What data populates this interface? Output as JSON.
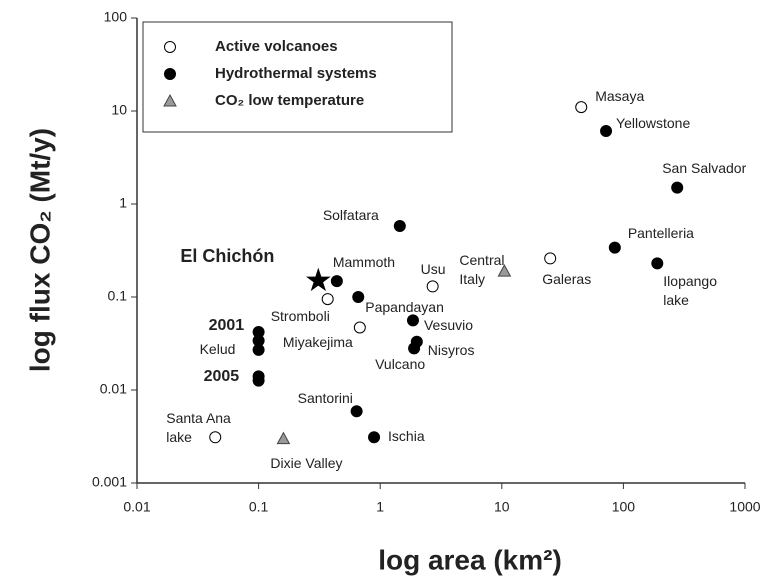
{
  "chart_data": {
    "type": "scatter",
    "x_label": "log area (km²)",
    "y_label": "log flux CO₂ (Mt/y)",
    "log_x": true,
    "log_y": true,
    "xlim": [
      0.01,
      1000
    ],
    "xticks": [
      0.01,
      0.1,
      1,
      10,
      100,
      1000
    ],
    "ylim": [
      0.001,
      100
    ],
    "yticks": [
      0.001,
      0.01,
      0.1,
      1,
      10,
      100
    ],
    "legend": "top-left",
    "series": [
      {
        "name": "Active volcanoes",
        "marker": "open-circle",
        "color": "#000000",
        "x": [
          45,
          25,
          2.7,
          0.37,
          0.68,
          0.044
        ],
        "values": [
          11,
          0.26,
          0.13,
          0.095,
          0.047,
          0.0031
        ],
        "point_labels": [
          "Masaya",
          "Galeras",
          "Usu",
          "Stromboli",
          "Miyakejima",
          "Santa Ana\nlake"
        ]
      },
      {
        "name": "Hydrothermal systems",
        "marker": "filled-circle",
        "color": "#000000",
        "x": [
          72,
          277,
          85,
          190,
          1.45,
          0.44,
          0.66,
          1.86,
          2.0,
          1.9,
          0.64,
          0.89,
          0.1,
          0.1,
          0.1,
          0.1,
          0.1
        ],
        "values": [
          6.1,
          1.5,
          0.34,
          0.23,
          0.58,
          0.148,
          0.1,
          0.056,
          0.033,
          0.028,
          0.0059,
          0.0031,
          0.042,
          0.034,
          0.027,
          0.014,
          0.0126
        ],
        "point_labels": [
          "Yellowstone",
          "San Salvador",
          "Pantelleria",
          "Ilopango\nlake",
          "Solfatara",
          "Mammoth",
          "Papandayan",
          "Vesuvio",
          "Nisyros",
          "Vulcano",
          "Santorini",
          "Ischia",
          "2001",
          null,
          "Kelud",
          "2005",
          null
        ]
      },
      {
        "name": "CO₂ low temperature",
        "marker": "triangle",
        "color": "#999999",
        "x": [
          10.5,
          0.16
        ],
        "values": [
          0.19,
          0.003
        ],
        "point_labels": [
          "Central\nItaly",
          "Dixie Valley"
        ]
      }
    ],
    "highlight": {
      "label": "El Chichón",
      "x": 0.31,
      "y": 0.15,
      "marker": "star",
      "color": "#000000"
    }
  }
}
